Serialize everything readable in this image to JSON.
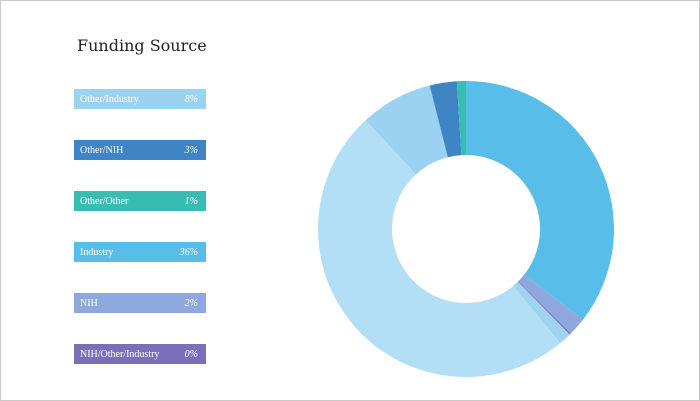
{
  "chart_data": {
    "type": "pie",
    "variant": "donut",
    "title": "Funding Source",
    "legend_position": "left",
    "slices": [
      {
        "label": "Industry",
        "value": 36,
        "display": "36%",
        "color": "#58bde8"
      },
      {
        "label": "NIH",
        "value": 2,
        "display": "2%",
        "color": "#8ea8dd"
      },
      {
        "label": "NIH/Other/Industry",
        "value": 0.15,
        "display": "0%",
        "color": "#7a6fb8"
      },
      {
        "label": "",
        "value": 1.4,
        "display": "",
        "color": "#9fd3f0"
      },
      {
        "label": "",
        "value": 49.8,
        "display": "",
        "color": "#b2dff6"
      },
      {
        "label": "Other/Industry",
        "value": 8,
        "display": "8%",
        "color": "#9cd2f1"
      },
      {
        "label": "Other/NIH",
        "value": 3,
        "display": "3%",
        "color": "#3f84c4"
      },
      {
        "label": "Other/Other",
        "value": 1,
        "display": "1%",
        "color": "#38bdb4"
      }
    ],
    "legend": [
      {
        "label": "Other/Industry",
        "display": "8%",
        "color": "#9cd2f1"
      },
      {
        "label": "Other/NIH",
        "display": "3%",
        "color": "#3f84c4"
      },
      {
        "label": "Other/Other",
        "display": "1%",
        "color": "#38bdb4"
      },
      {
        "label": "Industry",
        "display": "36%",
        "color": "#58bde8"
      },
      {
        "label": "NIH",
        "display": "2%",
        "color": "#8ea8dd"
      },
      {
        "label": "NIH/Other/Industry",
        "display": "0%",
        "color": "#7a6fb8"
      }
    ]
  }
}
